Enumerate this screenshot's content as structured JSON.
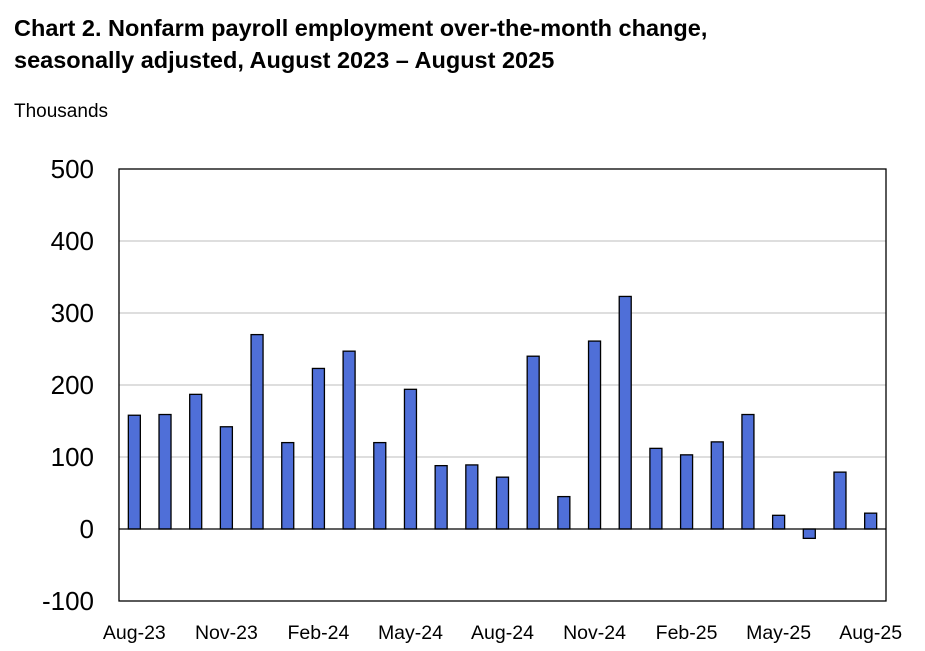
{
  "title_line1": "Chart 2. Nonfarm payroll employment over-the-month change,",
  "title_line2": "seasonally adjusted, August 2023 – August 2025",
  "unit_label": "Thousands",
  "colors": {
    "bar_fill": "#4f6fd8",
    "bar_stroke": "#000000",
    "grid": "#bdbdbd"
  },
  "chart_data": {
    "type": "bar",
    "title": "Chart 2. Nonfarm payroll employment over-the-month change, seasonally adjusted, August 2023 – August 2025",
    "ylabel": "Thousands",
    "xlabel": "",
    "ylim": [
      -100,
      500
    ],
    "yticks": [
      500,
      400,
      300,
      200,
      100,
      0,
      -100
    ],
    "grid": true,
    "legend": "none",
    "categories": [
      "Aug-23",
      "Sep-23",
      "Oct-23",
      "Nov-23",
      "Dec-23",
      "Jan-24",
      "Feb-24",
      "Mar-24",
      "Apr-24",
      "May-24",
      "Jun-24",
      "Jul-24",
      "Aug-24",
      "Sep-24",
      "Oct-24",
      "Nov-24",
      "Dec-24",
      "Jan-25",
      "Feb-25",
      "Mar-25",
      "Apr-25",
      "May-25",
      "Jun-25",
      "Jul-25",
      "Aug-25"
    ],
    "xtick_labels": [
      "Aug-23",
      "Nov-23",
      "Feb-24",
      "May-24",
      "Aug-24",
      "Nov-24",
      "Feb-25",
      "May-25",
      "Aug-25"
    ],
    "values": [
      158,
      159,
      187,
      142,
      270,
      120,
      223,
      247,
      120,
      194,
      88,
      89,
      72,
      240,
      45,
      261,
      323,
      112,
      103,
      121,
      159,
      19,
      -13,
      79,
      22
    ]
  }
}
